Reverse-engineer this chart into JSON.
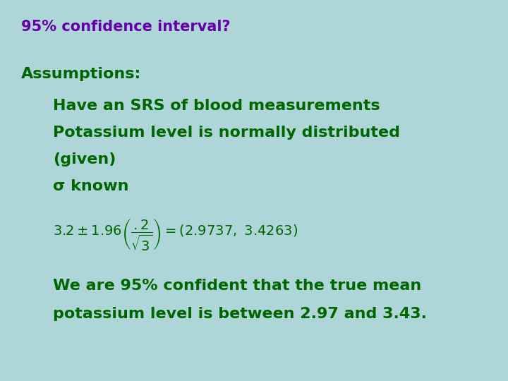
{
  "background_color": "#aed6d8",
  "title_text": "95% confidence interval?",
  "title_color": "#6600aa",
  "title_fontsize": 15,
  "green_color": "#006600",
  "assumptions_label": "Assumptions:",
  "assumptions_fontsize": 16,
  "bullet_lines": [
    "Have an SRS of blood measurements",
    "Potassium level is normally distributed",
    "(given)",
    "σ known"
  ],
  "bullet_fontsize": 16,
  "formula_fontsize": 14,
  "conclusion_lines": [
    "We are 95% confident that the true mean",
    "potassium level is between 2.97 and 3.43."
  ],
  "conclusion_fontsize": 16
}
